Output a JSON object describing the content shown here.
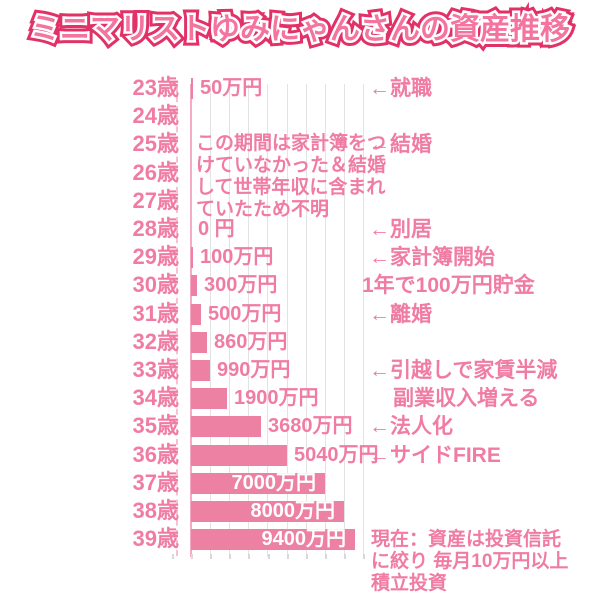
{
  "title": "ミニマリストゆみにゃんさんの資産推移",
  "colors": {
    "bar": "#ed81a3",
    "pink_text": "#f07ca4",
    "grid": "#e3e3e3",
    "tick": "#d9d9d9",
    "axis": "#f5aac6",
    "axis_dash": "#f7c0d4",
    "title_fill": "#f4739f",
    "title_outline": "#e23167",
    "inside_label": "#ffffff",
    "background": "#ffffff"
  },
  "chart_data": {
    "type": "bar",
    "orientation": "horizontal",
    "title": "ミニマリストゆみにゃんさんの資産推移",
    "unit": "万円",
    "xlim": [
      0,
      10000
    ],
    "grid": true,
    "legend": "none",
    "categories": [
      "23歳",
      "24歳",
      "25歳",
      "26歳",
      "27歳",
      "28歳",
      "29歳",
      "30歳",
      "31歳",
      "32歳",
      "33歳",
      "34歳",
      "35歳",
      "36歳",
      "37歳",
      "38歳",
      "39歳"
    ],
    "values": [
      50,
      null,
      null,
      null,
      null,
      0,
      100,
      300,
      500,
      860,
      990,
      1900,
      3680,
      5040,
      7000,
      8000,
      9400
    ],
    "rows": [
      {
        "age": "23歳",
        "value": 50,
        "label": "50万円",
        "label_inside": false
      },
      {
        "age": "24歳",
        "value": null,
        "label": "",
        "label_inside": false
      },
      {
        "age": "25歳",
        "value": null,
        "label": "",
        "label_inside": false
      },
      {
        "age": "26歳",
        "value": null,
        "label": "",
        "label_inside": false
      },
      {
        "age": "27歳",
        "value": null,
        "label": "",
        "label_inside": false
      },
      {
        "age": "28歳",
        "value": 0,
        "label": "0 円",
        "label_inside": false
      },
      {
        "age": "29歳",
        "value": 100,
        "label": "100万円",
        "label_inside": false
      },
      {
        "age": "30歳",
        "value": 300,
        "label": "300万円",
        "label_inside": false
      },
      {
        "age": "31歳",
        "value": 500,
        "label": "500万円",
        "label_inside": false
      },
      {
        "age": "32歳",
        "value": 860,
        "label": "860万円",
        "label_inside": false
      },
      {
        "age": "33歳",
        "value": 990,
        "label": "990万円",
        "label_inside": false
      },
      {
        "age": "34歳",
        "value": 1900,
        "label": "1900万円",
        "label_inside": false
      },
      {
        "age": "35歳",
        "value": 3680,
        "label": "3680万円",
        "label_inside": false
      },
      {
        "age": "36歳",
        "value": 5040,
        "label": "5040万円",
        "label_inside": false
      },
      {
        "age": "37歳",
        "value": 7000,
        "label": "7000万円",
        "label_inside": true
      },
      {
        "age": "38歳",
        "value": 8000,
        "label": "8000万円",
        "label_inside": true
      },
      {
        "age": "39歳",
        "value": 9400,
        "label": "9400万円",
        "label_inside": true
      }
    ],
    "note_block": [
      "この期間は家計簿をつ",
      "けていなかった＆結婚",
      "して世帯年収に含まれ",
      "ていたため不明"
    ],
    "annotations": [
      {
        "row": 0,
        "text": "←就職",
        "dx": 0
      },
      {
        "row": 2,
        "text": "←結婚",
        "dx": 0
      },
      {
        "row": 5,
        "text": "←別居",
        "dx": 0
      },
      {
        "row": 6,
        "text": "←家計簿開始",
        "dx": 0
      },
      {
        "row": 7,
        "text": "1年で100万円貯金",
        "dx": -7
      },
      {
        "row": 8,
        "text": "←離婚",
        "dx": 0
      },
      {
        "row": 10,
        "text": "←引越しで家賃半減",
        "dx": 0
      },
      {
        "row": 11,
        "text": "副業収入増える",
        "dx": 24
      },
      {
        "row": 12,
        "text": "←法人化",
        "dx": 0
      },
      {
        "row": 13,
        "text": "←サイドFIRE",
        "dx": 0
      }
    ],
    "bottom_note": [
      "現在：資産は投資信託",
      "に絞り 毎月10万円以上",
      "積立投資"
    ]
  }
}
